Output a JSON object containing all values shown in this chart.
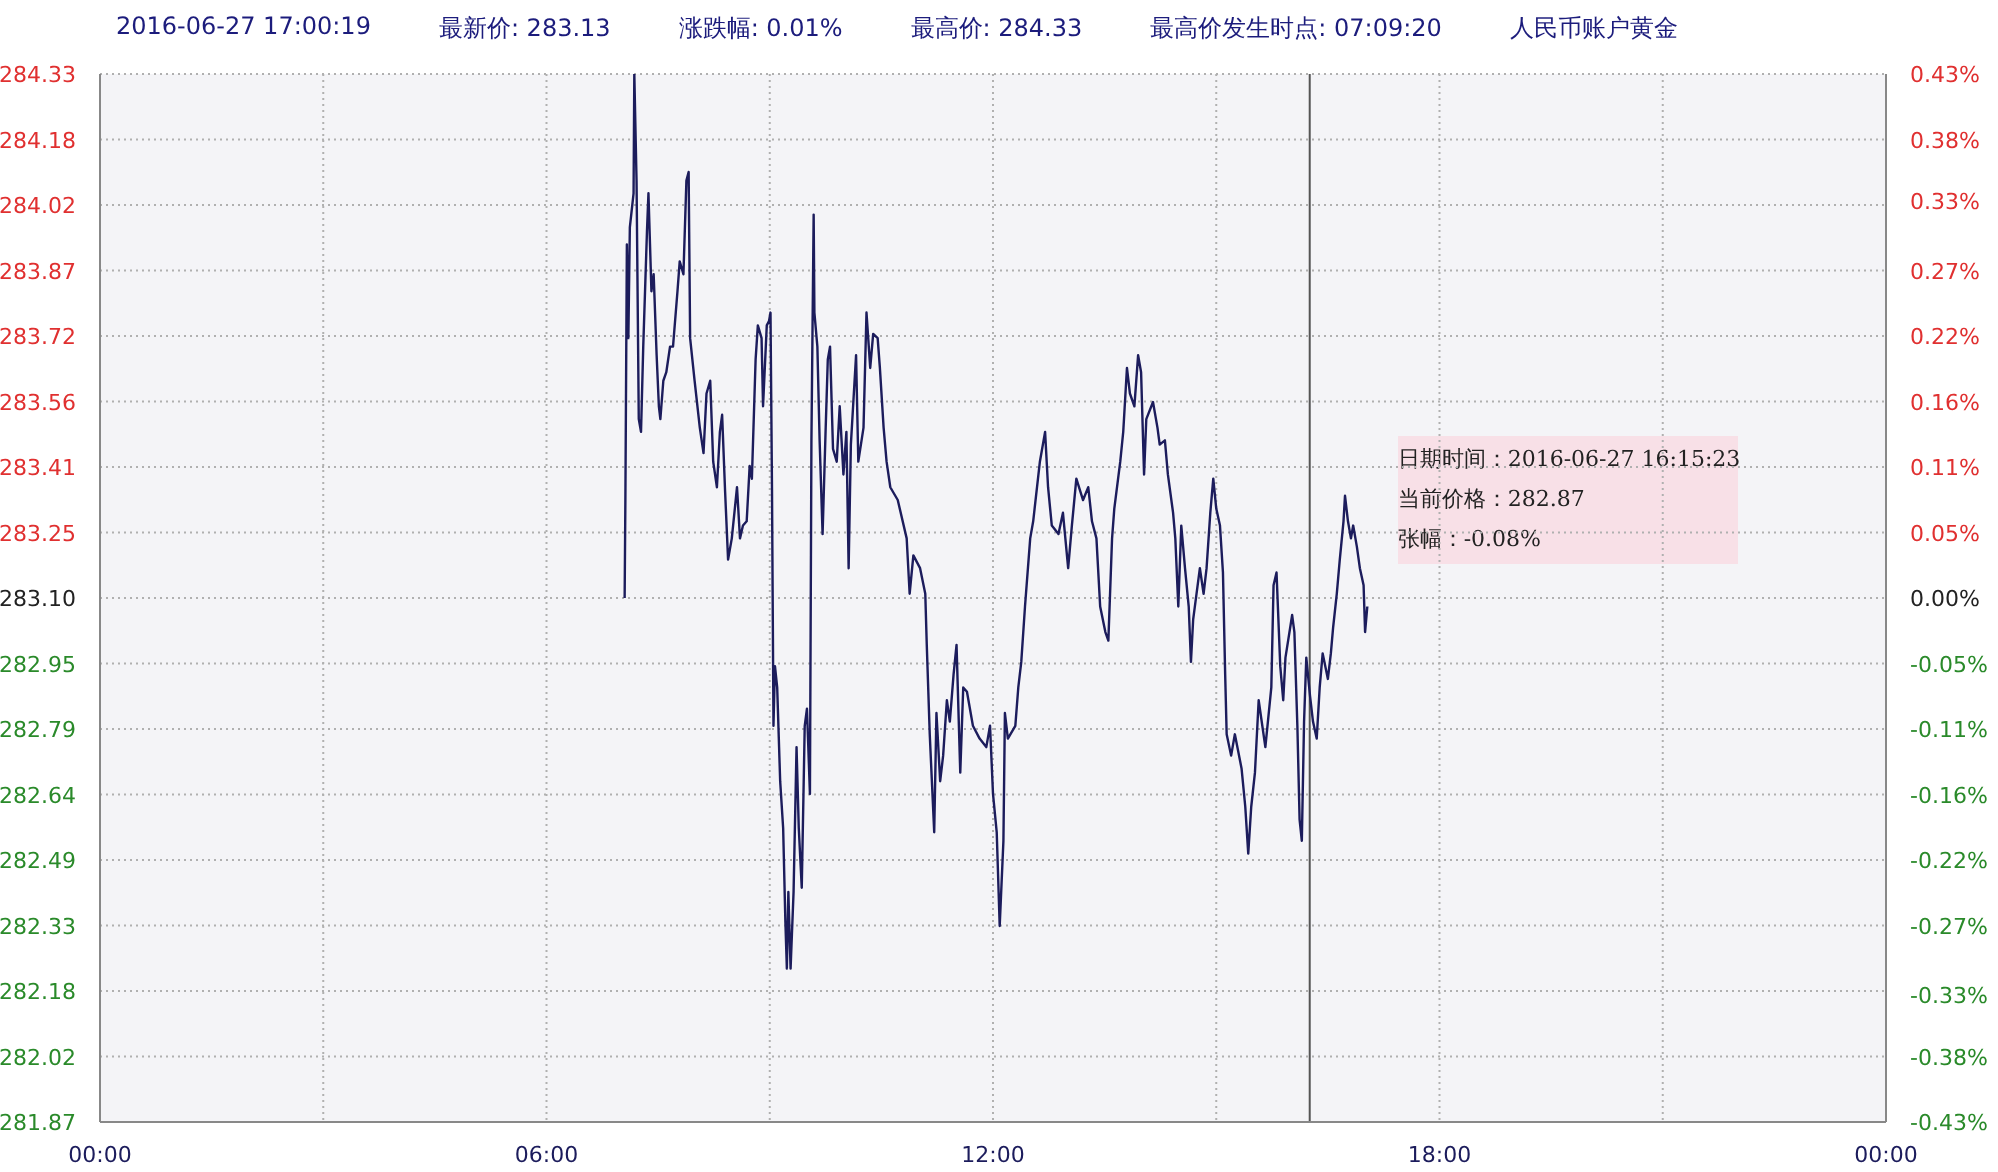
{
  "chart_data": {
    "type": "line",
    "title": "人民币账户黄金",
    "annotations": [
      "2016-06-27 17:00:19",
      "最新价: 283.13",
      "涨跌幅: 0.01%",
      "最高价: 284.33",
      "最高价发生时点:  07:09:20",
      "日期时间：2016-06-27 16:15:23\n当前价格：282.87\n张幅：-0.08%"
    ],
    "ref_lines": [
      {
        "axis": "x",
        "value": 16.256,
        "color": "#555555"
      }
    ],
    "xlim": [
      0,
      24
    ],
    "xticks": [
      {
        "value": 0,
        "label": "00:00"
      },
      {
        "value": 3,
        "label": null
      },
      {
        "value": 6,
        "label": "06:00"
      },
      {
        "value": 9,
        "label": null
      },
      {
        "value": 12,
        "label": "12:00"
      },
      {
        "value": 15,
        "label": null
      },
      {
        "value": 18,
        "label": "18:00"
      },
      {
        "value": 21,
        "label": null
      },
      {
        "value": 24,
        "label": "00:00"
      }
    ],
    "ylim": [
      281.87,
      284.33
    ],
    "yticks": [
      {
        "value": 281.87,
        "label": "281.87"
      },
      {
        "value": 282.02375,
        "label": "282.02"
      },
      {
        "value": 282.1775,
        "label": "282.18"
      },
      {
        "value": 282.33125,
        "label": "282.33"
      },
      {
        "value": 282.485,
        "label": "282.49"
      },
      {
        "value": 282.63875,
        "label": "282.64"
      },
      {
        "value": 282.7925,
        "label": "282.79"
      },
      {
        "value": 282.94625,
        "label": "282.95"
      },
      {
        "value": 283.1,
        "label": "283.10"
      },
      {
        "value": 283.25375,
        "label": "283.25"
      },
      {
        "value": 283.4075,
        "label": "283.41"
      },
      {
        "value": 283.56125,
        "label": "283.56"
      },
      {
        "value": 283.715,
        "label": "283.72"
      },
      {
        "value": 283.86875,
        "label": "283.87"
      },
      {
        "value": 284.0225,
        "label": "284.02"
      },
      {
        "value": 284.17625,
        "label": "284.18"
      },
      {
        "value": 284.33,
        "label": "284.33"
      }
    ],
    "y2lim": [
      -0.43,
      0.43
    ],
    "y2ticks": [
      {
        "value": -0.43,
        "label": "-0.43%"
      },
      {
        "value": -0.37625,
        "label": "-0.38%"
      },
      {
        "value": -0.326,
        "label": "-0.33%"
      },
      {
        "value": -0.26875,
        "label": "-0.27%"
      },
      {
        "value": -0.215,
        "label": "-0.22%"
      },
      {
        "value": -0.16125,
        "label": "-0.16%"
      },
      {
        "value": -0.1075,
        "label": "-0.11%"
      },
      {
        "value": -0.05375,
        "label": "-0.05%"
      },
      {
        "value": 0,
        "label": "0.00%"
      },
      {
        "value": 0.05375,
        "label": "0.05%"
      },
      {
        "value": 0.1075,
        "label": "0.11%"
      },
      {
        "value": 0.16125,
        "label": "0.16%"
      },
      {
        "value": 0.215,
        "label": "0.22%"
      },
      {
        "value": 0.26875,
        "label": "0.27%"
      },
      {
        "value": 0.326,
        "label": "0.33%"
      },
      {
        "value": 0.37625,
        "label": "0.38%"
      },
      {
        "value": 0.43,
        "label": "0.43%"
      }
    ],
    "grid": true,
    "marker": "none",
    "line_style": "solid",
    "series": [
      {
        "color": "#1c1c5c",
        "x": [
          7.05,
          7.06,
          7.08,
          7.1,
          7.12,
          7.17,
          7.18,
          7.21,
          7.24,
          7.27,
          7.3,
          7.35,
          7.37,
          7.41,
          7.44,
          7.48,
          7.51,
          7.53,
          7.57,
          7.61,
          7.66,
          7.7,
          7.76,
          7.79,
          7.84,
          7.88,
          7.91,
          7.93,
          7.99,
          8.06,
          8.11,
          8.15,
          8.2,
          8.24,
          8.29,
          8.33,
          8.36,
          8.4,
          8.44,
          8.49,
          8.56,
          8.6,
          8.64,
          8.69,
          8.73,
          8.76,
          8.81,
          8.84,
          8.89,
          8.91,
          8.96,
          8.99,
          9.01,
          9.03,
          9.05,
          9.07,
          9.1,
          9.14,
          9.18,
          9.21,
          9.23,
          9.25,
          9.28,
          9.32,
          9.36,
          9.39,
          9.43,
          9.47,
          9.5,
          9.54,
          9.56,
          9.59,
          9.6,
          9.64,
          9.67,
          9.71,
          9.75,
          9.78,
          9.81,
          9.85,
          9.9,
          9.94,
          9.99,
          10.03,
          10.06,
          10.09,
          10.12,
          10.16,
          10.19,
          10.26,
          10.3,
          10.35,
          10.39,
          10.45,
          10.48,
          10.53,
          10.57,
          10.62,
          10.72,
          10.84,
          10.88,
          10.93,
          11.02,
          11.09,
          11.11,
          11.15,
          11.21,
          11.24,
          11.29,
          11.33,
          11.38,
          11.42,
          11.47,
          11.51,
          11.56,
          11.6,
          11.65,
          11.73,
          11.82,
          11.91,
          11.96,
          12.0,
          12.05,
          12.09,
          12.14,
          12.16,
          12.2,
          12.3,
          12.34,
          12.38,
          12.43,
          12.5,
          12.54,
          12.63,
          12.7,
          12.74,
          12.79,
          12.88,
          12.94,
          13.01,
          13.06,
          13.12,
          13.21,
          13.28,
          13.33,
          13.39,
          13.44,
          13.51,
          13.55,
          13.6,
          13.63,
          13.71,
          13.75,
          13.8,
          13.84,
          13.9,
          13.95,
          13.99,
          14.03,
          14.06,
          14.15,
          14.21,
          14.24,
          14.31,
          14.35,
          14.42,
          14.45,
          14.49,
          14.53,
          14.58,
          14.63,
          14.66,
          14.69,
          14.78,
          14.83,
          14.87,
          14.92,
          14.96,
          15.0,
          15.05,
          15.09,
          15.12,
          15.14,
          15.2,
          15.25,
          15.34,
          15.39,
          15.43,
          15.47,
          15.52,
          15.57,
          15.66,
          15.74,
          15.77,
          15.81,
          15.86,
          15.9,
          15.93,
          16.02,
          16.05,
          16.09,
          16.12,
          16.15,
          16.18,
          16.21,
          16.26,
          16.3,
          16.35,
          16.39,
          16.43,
          16.5,
          16.54,
          16.57,
          16.62,
          16.66,
          16.71,
          16.73,
          16.77,
          16.81,
          16.84,
          16.89,
          16.93,
          16.98,
          17.0,
          17.03
        ],
        "values": [
          283.1,
          283.33,
          283.93,
          283.71,
          283.97,
          284.05,
          284.33,
          284.08,
          283.52,
          283.49,
          283.69,
          283.96,
          284.05,
          283.82,
          283.86,
          283.67,
          283.55,
          283.52,
          283.61,
          283.63,
          283.69,
          283.69,
          283.82,
          283.89,
          283.86,
          284.08,
          284.1,
          283.71,
          283.61,
          283.5,
          283.44,
          283.58,
          283.61,
          283.42,
          283.36,
          283.49,
          283.53,
          283.35,
          283.19,
          283.24,
          283.36,
          283.24,
          283.27,
          283.28,
          283.41,
          283.38,
          283.66,
          283.74,
          283.71,
          283.55,
          283.74,
          283.75,
          283.77,
          283.36,
          282.8,
          282.94,
          282.89,
          282.67,
          282.56,
          282.34,
          282.23,
          282.41,
          282.23,
          282.41,
          282.75,
          282.56,
          282.42,
          282.8,
          282.84,
          282.64,
          283.47,
          284.0,
          283.77,
          283.69,
          283.47,
          283.25,
          283.49,
          283.66,
          283.69,
          283.45,
          283.42,
          283.55,
          283.39,
          283.49,
          283.17,
          283.46,
          283.55,
          283.67,
          283.42,
          283.5,
          283.77,
          283.64,
          283.72,
          283.71,
          283.64,
          283.5,
          283.42,
          283.36,
          283.33,
          283.24,
          283.11,
          283.2,
          283.17,
          283.11,
          282.99,
          282.78,
          282.55,
          282.83,
          282.67,
          282.73,
          282.86,
          282.81,
          282.92,
          282.99,
          282.69,
          282.89,
          282.88,
          282.8,
          282.77,
          282.75,
          282.8,
          282.64,
          282.55,
          282.33,
          282.53,
          282.83,
          282.77,
          282.8,
          282.89,
          282.95,
          283.08,
          283.24,
          283.28,
          283.42,
          283.49,
          283.36,
          283.27,
          283.25,
          283.3,
          283.17,
          283.27,
          283.38,
          283.33,
          283.36,
          283.28,
          283.24,
          283.08,
          283.02,
          283.0,
          283.24,
          283.31,
          283.42,
          283.49,
          283.64,
          283.58,
          283.55,
          283.67,
          283.63,
          283.39,
          283.52,
          283.56,
          283.5,
          283.46,
          283.47,
          283.39,
          283.3,
          283.24,
          283.08,
          283.27,
          283.17,
          283.08,
          282.95,
          283.05,
          283.17,
          283.11,
          283.17,
          283.3,
          283.38,
          283.31,
          283.27,
          283.16,
          282.92,
          282.78,
          282.73,
          282.78,
          282.7,
          282.61,
          282.5,
          282.61,
          282.69,
          282.86,
          282.75,
          282.89,
          283.13,
          283.16,
          282.94,
          282.86,
          282.96,
          283.06,
          283.02,
          282.8,
          282.58,
          282.53,
          282.81,
          282.96,
          282.87,
          282.81,
          282.77,
          282.89,
          282.97,
          282.91,
          282.97,
          283.03,
          283.11,
          283.19,
          283.28,
          283.34,
          283.28,
          283.24,
          283.27,
          283.22,
          283.17,
          283.13,
          283.02,
          283.08
        ]
      }
    ]
  }
}
